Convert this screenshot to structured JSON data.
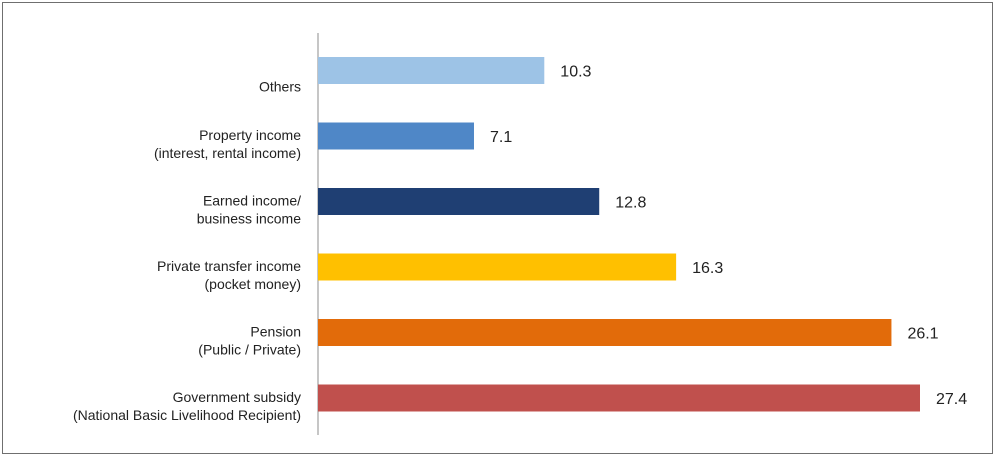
{
  "chart_data": {
    "type": "bar",
    "orientation": "horizontal",
    "title": "",
    "xlabel": "",
    "ylabel": "",
    "xlim": [
      0,
      27.4
    ],
    "grid": false,
    "legend": "none",
    "categories": [
      [
        "Others"
      ],
      [
        "Property income",
        "(interest, rental income)"
      ],
      [
        "Earned income/",
        "business income"
      ],
      [
        "Private transfer income",
        "(pocket money)"
      ],
      [
        "Pension",
        "(Public / Private)"
      ],
      [
        "Government subsidy",
        "(National Basic Livelihood Recipient)"
      ]
    ],
    "values": [
      10.3,
      7.1,
      12.8,
      16.3,
      26.1,
      27.4
    ],
    "value_labels": [
      "10.3",
      "7.1",
      "12.8",
      "16.3",
      "26.1",
      "27.4"
    ],
    "colors": [
      "#9dc3e6",
      "#4f87c7",
      "#1f3f73",
      "#ffc000",
      "#e26b0a",
      "#c0504d"
    ]
  }
}
